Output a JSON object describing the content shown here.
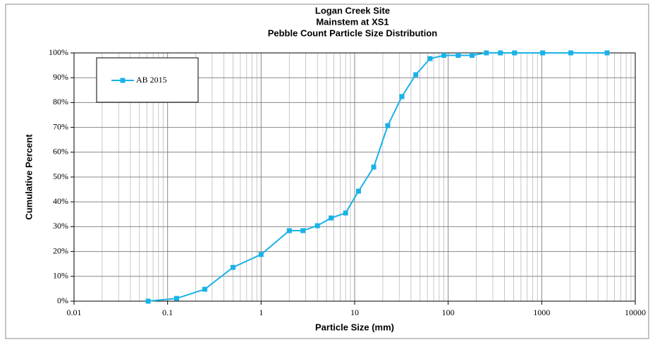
{
  "chart_data": {
    "type": "line",
    "title": [
      "Logan Creek Site",
      "Mainstem at XS1",
      "Pebble Count Particle Size Distribution"
    ],
    "x_label": "Particle Size (mm)",
    "y_label": "Cumulative Percent",
    "xscale": "log",
    "grid": true,
    "legend": "upper left",
    "xlim": [
      0.01,
      10000
    ],
    "xticks": [
      0.01,
      0.1,
      1,
      10,
      100,
      1000,
      10000
    ],
    "ylim": [
      0,
      100
    ],
    "yticks": [
      {
        "value": 0,
        "label": "0%"
      },
      {
        "value": 10,
        "label": "10%"
      },
      {
        "value": 20,
        "label": "20%"
      },
      {
        "value": 30,
        "label": "30%"
      },
      {
        "value": 40,
        "label": "40%"
      },
      {
        "value": 50,
        "label": "50%"
      },
      {
        "value": 60,
        "label": "60%"
      },
      {
        "value": 70,
        "label": "70%"
      },
      {
        "value": 80,
        "label": "80%"
      },
      {
        "value": 90,
        "label": "90%"
      },
      {
        "value": 100,
        "label": "100%"
      }
    ],
    "x": [
      0.062,
      0.125,
      0.25,
      0.5,
      1,
      2,
      2.8,
      4,
      5.6,
      8,
      11,
      16,
      22.6,
      32,
      45,
      64,
      90,
      128,
      180,
      256,
      362,
      512,
      1024,
      2048,
      5000
    ],
    "series": [
      {
        "name": "AB 2015",
        "color": "#19b2e8",
        "values": [
          0,
          1.1,
          4.8,
          13.6,
          18.8,
          28.4,
          28.4,
          30.4,
          33.5,
          35.5,
          44.3,
          54,
          70.7,
          82.4,
          91.2,
          97.7,
          99,
          99,
          99,
          100,
          100,
          100,
          100,
          100,
          100
        ]
      }
    ]
  }
}
